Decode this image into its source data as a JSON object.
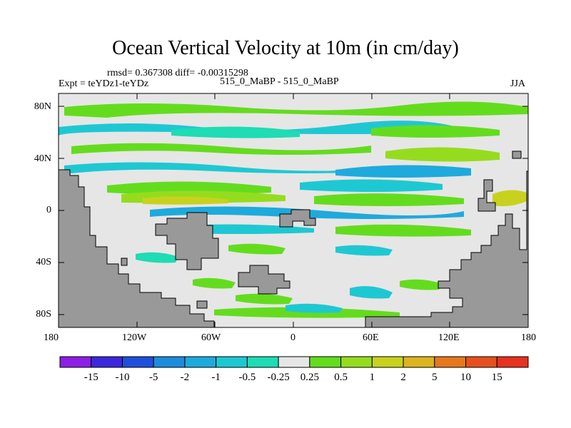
{
  "title": "Ocean Vertical Velocity at 10m (in cm/day)",
  "stats": "rmsd= 0.367308 diff= -0.00315298",
  "experiment": "Expt = teYDz1-teYDz",
  "period": "515_0_MaBP - 515_0_MaBP",
  "season": "JJA",
  "y_ticks": [
    "80N",
    "40N",
    "0",
    "40S",
    "80S"
  ],
  "x_ticks": [
    "180",
    "120W",
    "60W",
    "0",
    "60E",
    "120E",
    "180"
  ],
  "colorbar": {
    "labels": [
      "-15",
      "-10",
      "-5",
      "-2",
      "-1",
      "-0.5",
      "-0.25",
      "0.25",
      "0.5",
      "1",
      "2",
      "5",
      "10",
      "15"
    ],
    "colors": [
      "#8c1ee6",
      "#3c28dc",
      "#1e50dc",
      "#1e8cdc",
      "#1eaadc",
      "#1ec8d2",
      "#1edcb4",
      "#e6e6e6",
      "#64dc1e",
      "#96dc1e",
      "#c8d21e",
      "#dcb41e",
      "#e6781e",
      "#e6501e",
      "#e6321e"
    ]
  },
  "colors": {
    "land": "#999999",
    "ocean": "#e6e6e6"
  }
}
